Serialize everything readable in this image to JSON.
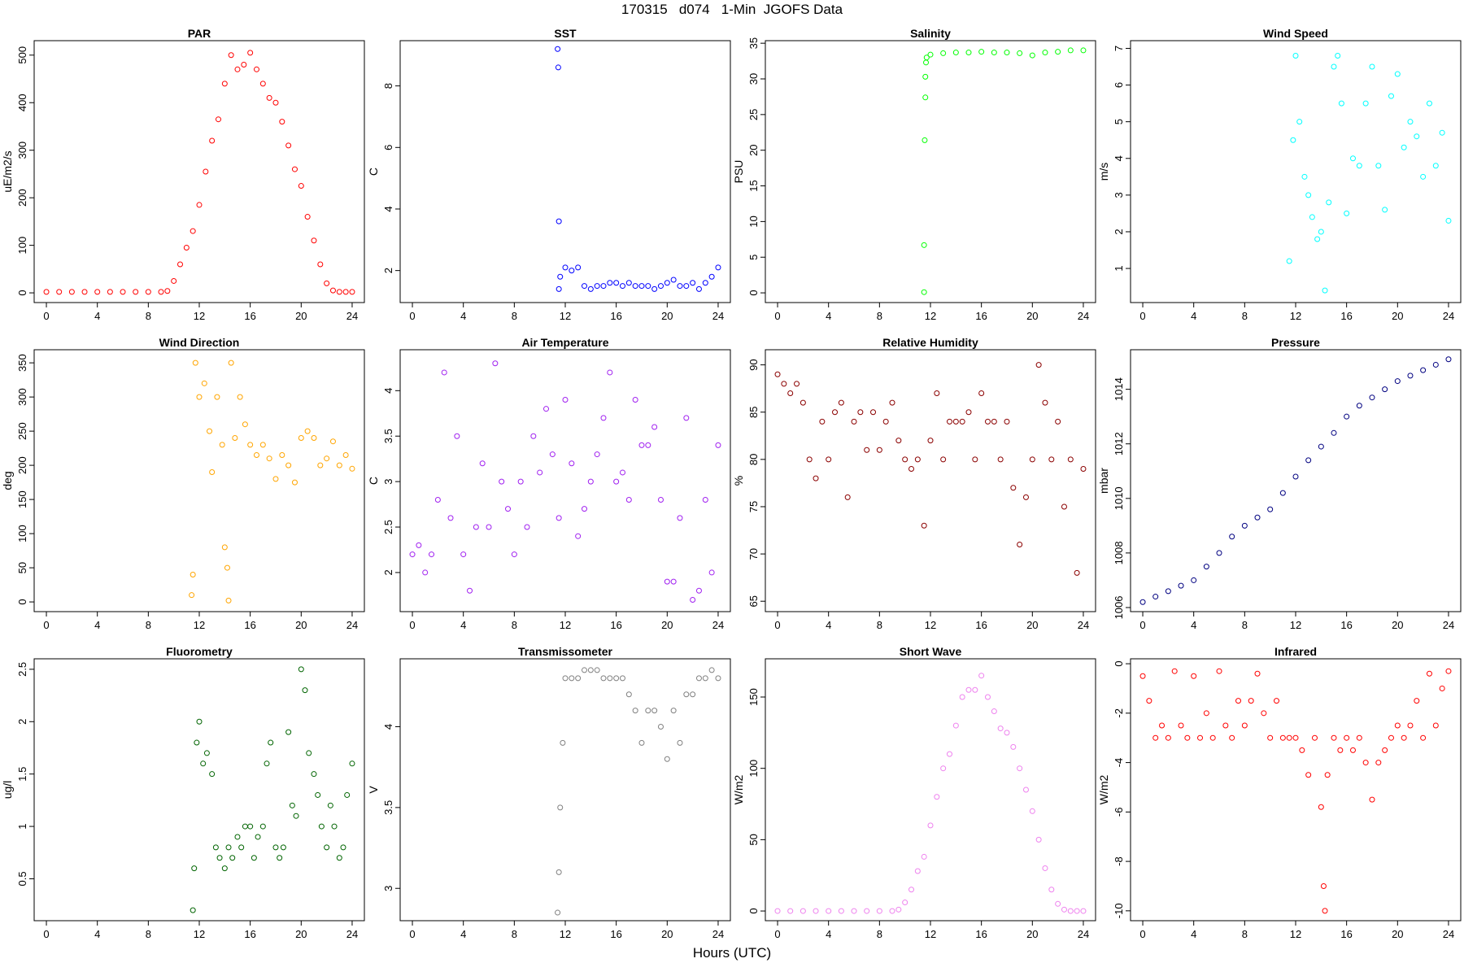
{
  "title": "170315   d074   1-Min  JGOFS Data",
  "xlabel": "Hours (UTC)",
  "chart_data": [
    {
      "type": "scatter",
      "title": "PAR",
      "ylabel": "uE/m2/s",
      "color": "#ff0000",
      "xlim": [
        -0.96,
        24.96
      ],
      "ylim": [
        -20.4,
        530.4
      ],
      "xticks": [
        0,
        4,
        8,
        12,
        16,
        20,
        24
      ],
      "yticks": [
        0,
        100,
        200,
        300,
        400,
        500
      ],
      "x": [
        0,
        1,
        2,
        3,
        4,
        5,
        6,
        7,
        8,
        9,
        9.5,
        10,
        10.5,
        11,
        11.5,
        12,
        12.5,
        13,
        13.5,
        14,
        14.5,
        15,
        15.5,
        16,
        16.5,
        17,
        17.5,
        18,
        18.5,
        19,
        19.5,
        20,
        20.5,
        21,
        21.5,
        22,
        22.5,
        23,
        23.5,
        24
      ],
      "y": [
        2,
        2,
        2,
        2,
        2,
        2,
        2,
        2,
        2,
        2,
        4,
        25,
        60,
        95,
        130,
        185,
        255,
        320,
        365,
        440,
        500,
        470,
        480,
        505,
        470,
        440,
        410,
        400,
        360,
        310,
        260,
        225,
        160,
        110,
        60,
        20,
        5,
        2,
        2,
        2
      ]
    },
    {
      "type": "scatter",
      "title": "SST",
      "ylabel": "C",
      "color": "#0000ff",
      "xlim": [
        -0.96,
        24.96
      ],
      "ylim": [
        0.96,
        9.47
      ],
      "xticks": [
        0,
        4,
        8,
        12,
        16,
        20,
        24
      ],
      "yticks": [
        2,
        4,
        6,
        8
      ],
      "x": [
        11.4,
        11.45,
        11.5,
        11.5,
        11.6,
        12,
        12.5,
        13,
        13.5,
        14,
        14.5,
        15,
        15.5,
        16,
        16.5,
        17,
        17.5,
        18,
        18.5,
        19,
        19.5,
        20,
        20.5,
        21,
        21.5,
        22,
        22.5,
        23,
        23.5,
        24
      ],
      "y": [
        9.2,
        8.6,
        3.6,
        1.4,
        1.8,
        2.1,
        2.0,
        2.1,
        1.5,
        1.4,
        1.5,
        1.5,
        1.6,
        1.6,
        1.5,
        1.6,
        1.5,
        1.5,
        1.5,
        1.4,
        1.5,
        1.6,
        1.7,
        1.5,
        1.5,
        1.6,
        1.4,
        1.6,
        1.8,
        2.1
      ]
    },
    {
      "type": "scatter",
      "title": "Salinity",
      "ylabel": "PSU",
      "color": "#00ff00",
      "xlim": [
        -0.96,
        24.96
      ],
      "ylim": [
        -1.36,
        35.36
      ],
      "xticks": [
        0,
        4,
        8,
        12,
        16,
        20,
        24
      ],
      "yticks": [
        0,
        5,
        10,
        15,
        20,
        25,
        30,
        35
      ],
      "x": [
        11.5,
        11.5,
        11.55,
        11.6,
        11.6,
        11.65,
        11.7,
        12,
        13,
        14,
        15,
        16,
        17,
        18,
        19,
        20,
        21,
        22,
        23,
        24
      ],
      "y": [
        0.1,
        6.7,
        21.4,
        27.4,
        30.3,
        32.3,
        33.0,
        33.4,
        33.6,
        33.7,
        33.7,
        33.8,
        33.7,
        33.7,
        33.6,
        33.3,
        33.7,
        33.8,
        34.0,
        34.0
      ]
    },
    {
      "type": "scatter",
      "title": "Wind Speed",
      "ylabel": "m/s",
      "color": "#00ffff",
      "xlim": [
        -0.96,
        24.96
      ],
      "ylim": [
        0.07,
        7.21
      ],
      "xticks": [
        0,
        4,
        8,
        12,
        16,
        20,
        24
      ],
      "yticks": [
        1,
        2,
        3,
        4,
        5,
        6,
        7
      ],
      "x": [
        11.5,
        11.8,
        12,
        12.3,
        12.7,
        13,
        13.3,
        13.7,
        14,
        14.3,
        14.6,
        15,
        15.3,
        15.6,
        16,
        16.5,
        17,
        17.5,
        18,
        18.5,
        19,
        19.5,
        20,
        20.5,
        21,
        21.5,
        22,
        22.5,
        23,
        23.5,
        24
      ],
      "y": [
        1.2,
        4.5,
        6.8,
        5.0,
        3.5,
        3.0,
        2.4,
        1.8,
        2.0,
        0.4,
        2.8,
        6.5,
        6.8,
        5.5,
        2.5,
        4.0,
        3.8,
        5.5,
        6.5,
        3.8,
        2.6,
        5.7,
        6.3,
        4.3,
        5.0,
        4.6,
        3.5,
        5.5,
        3.8,
        4.7,
        2.3
      ]
    },
    {
      "type": "scatter",
      "title": "Wind Direction",
      "ylabel": "deg",
      "color": "#ffa500",
      "xlim": [
        -0.96,
        24.96
      ],
      "ylim": [
        -14.2,
        369.2
      ],
      "xticks": [
        0,
        4,
        8,
        12,
        16,
        20,
        24
      ],
      "yticks": [
        0,
        50,
        100,
        150,
        200,
        250,
        300,
        350
      ],
      "x": [
        11.4,
        11.5,
        11.7,
        12,
        12.4,
        12.8,
        13,
        13.4,
        13.8,
        14,
        14.2,
        14.3,
        14.5,
        14.8,
        15.2,
        15.6,
        16,
        16.5,
        17,
        17.5,
        18,
        18.5,
        19,
        19.5,
        20,
        20.5,
        21,
        21.5,
        22,
        22.5,
        23,
        23.5,
        24
      ],
      "y": [
        10,
        40,
        350,
        300,
        320,
        250,
        190,
        300,
        230,
        80,
        50,
        2,
        350,
        240,
        300,
        260,
        230,
        215,
        230,
        210,
        180,
        215,
        200,
        175,
        240,
        250,
        240,
        200,
        210,
        235,
        200,
        215,
        195
      ]
    },
    {
      "type": "scatter",
      "title": "Air Temperature",
      "ylabel": "C",
      "color": "#a020f0",
      "xlim": [
        -0.96,
        24.96
      ],
      "ylim": [
        1.57,
        4.45
      ],
      "xticks": [
        0,
        4,
        8,
        12,
        16,
        20,
        24
      ],
      "yticks": [
        2.0,
        2.5,
        3.0,
        3.5,
        4.0
      ],
      "x": [
        0,
        0.5,
        1,
        1.5,
        2,
        2.5,
        3,
        3.5,
        4,
        4.5,
        5,
        5.5,
        6,
        6.5,
        7,
        7.5,
        8,
        8.5,
        9,
        9.5,
        10,
        10.5,
        11,
        11.5,
        12,
        12.5,
        13,
        13.5,
        14,
        14.5,
        15,
        15.5,
        16,
        16.5,
        17,
        17.5,
        18,
        18.5,
        19,
        19.5,
        20,
        20.5,
        21,
        21.5,
        22,
        22.5,
        23,
        23.5,
        24
      ],
      "y": [
        2.2,
        2.3,
        2.0,
        2.2,
        2.8,
        4.2,
        2.6,
        3.5,
        2.2,
        1.8,
        2.5,
        3.2,
        2.5,
        4.3,
        3.0,
        2.7,
        2.2,
        3.0,
        2.5,
        3.5,
        3.1,
        3.8,
        3.3,
        2.6,
        3.9,
        3.2,
        2.4,
        2.7,
        3.0,
        3.3,
        3.7,
        4.2,
        3.0,
        3.1,
        2.8,
        3.9,
        3.4,
        3.4,
        3.6,
        2.8,
        1.9,
        1.9,
        2.6,
        3.7,
        1.7,
        1.8,
        2.8,
        2.0,
        3.4
      ]
    },
    {
      "type": "scatter",
      "title": "Relative Humidity",
      "ylabel": "%",
      "color": "#8b0000",
      "xlim": [
        -0.96,
        24.96
      ],
      "ylim": [
        63.9,
        91.6
      ],
      "xticks": [
        0,
        4,
        8,
        12,
        16,
        20,
        24
      ],
      "yticks": [
        65,
        70,
        75,
        80,
        85,
        90
      ],
      "x": [
        0,
        0.5,
        1,
        1.5,
        2,
        2.5,
        3,
        3.5,
        4,
        4.5,
        5,
        5.5,
        6,
        6.5,
        7,
        7.5,
        8,
        8.5,
        9,
        9.5,
        10,
        10.5,
        11,
        11.5,
        12,
        12.5,
        13,
        13.5,
        14,
        14.5,
        15,
        15.5,
        16,
        16.5,
        17,
        17.5,
        18,
        18.5,
        19,
        19.5,
        20,
        20.5,
        21,
        21.5,
        22,
        22.5,
        23,
        23.5,
        24
      ],
      "y": [
        89,
        88,
        87,
        88,
        86,
        80,
        78,
        84,
        80,
        85,
        86,
        76,
        84,
        85,
        81,
        85,
        81,
        84,
        86,
        82,
        80,
        79,
        80,
        73,
        82,
        87,
        80,
        84,
        84,
        84,
        85,
        80,
        87,
        84,
        84,
        80,
        84,
        77,
        71,
        76,
        80,
        90,
        86,
        80,
        84,
        75,
        80,
        68,
        79
      ]
    },
    {
      "type": "scatter",
      "title": "Pressure",
      "ylabel": "mbar",
      "color": "#000080",
      "xlim": [
        -0.96,
        24.96
      ],
      "ylim": [
        1005.85,
        1015.45
      ],
      "xticks": [
        0,
        4,
        8,
        12,
        16,
        20,
        24
      ],
      "yticks": [
        1006,
        1008,
        1010,
        1012,
        1014
      ],
      "x": [
        0,
        1,
        2,
        3,
        4,
        5,
        6,
        7,
        8,
        9,
        10,
        11,
        12,
        13,
        14,
        15,
        16,
        17,
        18,
        19,
        20,
        21,
        22,
        23,
        24
      ],
      "y": [
        1006.2,
        1006.4,
        1006.6,
        1006.8,
        1007.0,
        1007.5,
        1008.0,
        1008.6,
        1009.0,
        1009.3,
        1009.6,
        1010.2,
        1010.8,
        1011.4,
        1011.9,
        1012.4,
        1013.0,
        1013.4,
        1013.7,
        1014.0,
        1014.3,
        1014.5,
        1014.7,
        1014.9,
        1015.1
      ]
    },
    {
      "type": "scatter",
      "title": "Fluorometry",
      "ylabel": "ug/l",
      "color": "#006400",
      "xlim": [
        -0.96,
        24.96
      ],
      "ylim": [
        0.1,
        2.6
      ],
      "xticks": [
        0,
        4,
        8,
        12,
        16,
        20,
        24
      ],
      "yticks": [
        0.5,
        1.0,
        1.5,
        2.0,
        2.5
      ],
      "x": [
        11.5,
        11.6,
        11.8,
        12,
        12.3,
        12.6,
        13,
        13.3,
        13.6,
        14,
        14.3,
        14.6,
        15,
        15.3,
        15.6,
        16,
        16.3,
        16.6,
        17,
        17.3,
        17.6,
        18,
        18.3,
        18.6,
        19,
        19.3,
        19.6,
        20,
        20.3,
        20.6,
        21,
        21.3,
        21.6,
        22,
        22.3,
        22.6,
        23,
        23.3,
        23.6,
        24
      ],
      "y": [
        0.2,
        0.6,
        1.8,
        2.0,
        1.6,
        1.7,
        1.5,
        0.8,
        0.7,
        0.6,
        0.8,
        0.7,
        0.9,
        0.8,
        1.0,
        1.0,
        0.7,
        0.9,
        1.0,
        1.6,
        1.8,
        0.8,
        0.7,
        0.8,
        1.9,
        1.2,
        1.1,
        2.5,
        2.3,
        1.7,
        1.5,
        1.3,
        1.0,
        0.8,
        1.2,
        1.0,
        0.7,
        0.8,
        1.3,
        1.6
      ]
    },
    {
      "type": "scatter",
      "title": "Transmissometer",
      "ylabel": "V",
      "color": "#808080",
      "xlim": [
        -0.96,
        24.96
      ],
      "ylim": [
        2.8,
        4.42
      ],
      "xticks": [
        0,
        4,
        8,
        12,
        16,
        20,
        24
      ],
      "yticks": [
        3.0,
        3.5,
        4.0
      ],
      "x": [
        11.4,
        11.5,
        11.6,
        11.8,
        12,
        12.5,
        13,
        13.5,
        14,
        14.5,
        15,
        15.5,
        16,
        16.5,
        17,
        17.5,
        18,
        18.5,
        19,
        19.5,
        20,
        20.5,
        21,
        21.5,
        22,
        22.5,
        23,
        23.5,
        24
      ],
      "y": [
        2.85,
        3.1,
        3.5,
        3.9,
        4.3,
        4.3,
        4.3,
        4.35,
        4.35,
        4.35,
        4.3,
        4.3,
        4.3,
        4.3,
        4.2,
        4.1,
        3.9,
        4.1,
        4.1,
        4.0,
        3.8,
        4.1,
        3.9,
        4.2,
        4.2,
        4.3,
        4.3,
        4.35,
        4.3
      ]
    },
    {
      "type": "scatter",
      "title": "Short Wave",
      "ylabel": "W/m2",
      "color": "#ee82ee",
      "xlim": [
        -0.96,
        24.96
      ],
      "ylim": [
        -6.8,
        176.8
      ],
      "xticks": [
        0,
        4,
        8,
        12,
        16,
        20,
        24
      ],
      "yticks": [
        0,
        50,
        100,
        150
      ],
      "x": [
        0,
        1,
        2,
        3,
        4,
        5,
        6,
        7,
        8,
        9,
        9.5,
        10,
        10.5,
        11,
        11.5,
        12,
        12.5,
        13,
        13.5,
        14,
        14.5,
        15,
        15.5,
        16,
        16.5,
        17,
        17.5,
        18,
        18.5,
        19,
        19.5,
        20,
        20.5,
        21,
        21.5,
        22,
        22.5,
        23,
        23.5,
        24
      ],
      "y": [
        0,
        0,
        0,
        0,
        0,
        0,
        0,
        0,
        0,
        0,
        1,
        6,
        15,
        28,
        38,
        60,
        80,
        100,
        110,
        130,
        150,
        155,
        155,
        165,
        150,
        140,
        128,
        125,
        115,
        100,
        85,
        70,
        50,
        30,
        15,
        5,
        1,
        0,
        0,
        0
      ]
    },
    {
      "type": "scatter",
      "title": "Infrared",
      "ylabel": "W/m2",
      "color": "#ff0000",
      "xlim": [
        -0.96,
        24.96
      ],
      "ylim": [
        -10.4,
        0.2
      ],
      "xticks": [
        0,
        4,
        8,
        12,
        16,
        20,
        24
      ],
      "yticks": [
        -10,
        -8,
        -6,
        -4,
        -2,
        0
      ],
      "x": [
        0,
        0.5,
        1,
        1.5,
        2,
        2.5,
        3,
        3.5,
        4,
        4.5,
        5,
        5.5,
        6,
        6.5,
        7,
        7.5,
        8,
        8.5,
        9,
        9.5,
        10,
        10.5,
        11,
        11.5,
        12,
        12.5,
        13,
        13.5,
        14,
        14.2,
        14.3,
        14.5,
        15,
        15.5,
        16,
        16.5,
        17,
        17.5,
        18,
        18.5,
        19,
        19.5,
        20,
        20.5,
        21,
        21.5,
        22,
        22.5,
        23,
        23.5,
        24
      ],
      "y": [
        -0.5,
        -1.5,
        -3.0,
        -2.5,
        -3.0,
        -0.3,
        -2.5,
        -3.0,
        -0.5,
        -3.0,
        -2.0,
        -3.0,
        -0.3,
        -2.5,
        -3.0,
        -1.5,
        -2.5,
        -1.5,
        -0.4,
        -2.0,
        -3.0,
        -1.5,
        -3.0,
        -3.0,
        -3.0,
        -3.5,
        -4.5,
        -3.0,
        -5.8,
        -9.0,
        -10.0,
        -4.5,
        -3.0,
        -3.5,
        -3.0,
        -3.5,
        -3.0,
        -4.0,
        -5.5,
        -4.0,
        -3.5,
        -3.0,
        -2.5,
        -3.0,
        -2.5,
        -1.5,
        -3.0,
        -0.4,
        -2.5,
        -1.0,
        -0.3
      ]
    }
  ]
}
